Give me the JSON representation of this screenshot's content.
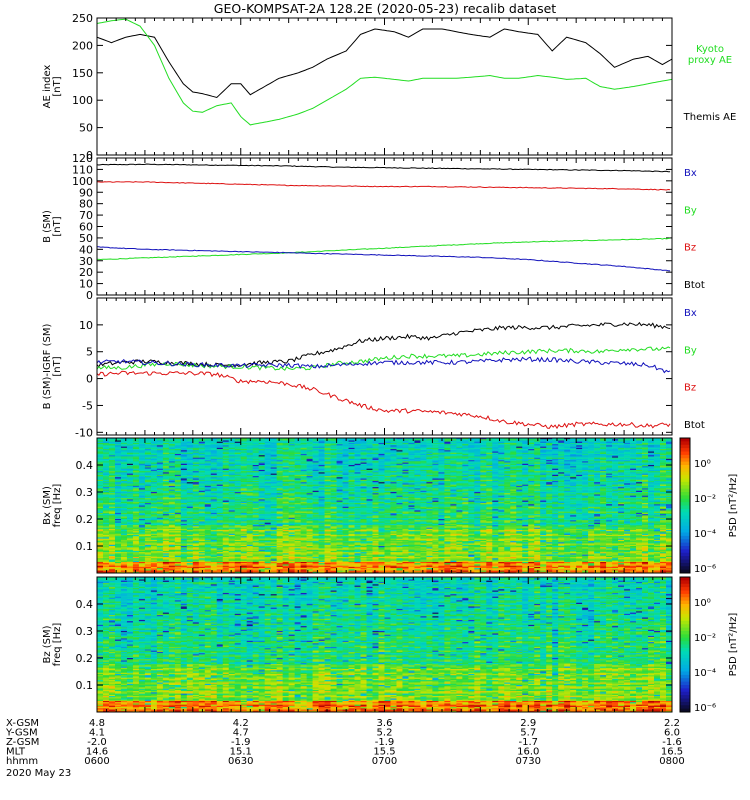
{
  "title": "GEO-KOMPSAT-2A 128.2E (2020-05-23) recalib dataset",
  "colors": {
    "black": "#000000",
    "green": "#22dd22",
    "red": "#dd1111",
    "blue": "#1111bb"
  },
  "chart_data": [
    {
      "id": "ae",
      "type": "line",
      "ylabel": [
        "AE index",
        "[nT]"
      ],
      "ylim": [
        0,
        250
      ],
      "yticks": [
        0,
        50,
        100,
        150,
        200,
        250
      ],
      "x": [
        0,
        3,
        6,
        9,
        12,
        15,
        18,
        20,
        22,
        25,
        28,
        30,
        32,
        35,
        38,
        42,
        45,
        48,
        52,
        55,
        58,
        62,
        65,
        68,
        72,
        75,
        78,
        82,
        85,
        88,
        92,
        95,
        98,
        102,
        105,
        108,
        112,
        115,
        118,
        120
      ],
      "series": [
        {
          "name": "Themis AE",
          "color": "#000000",
          "label_lines": [
            "Themis AE"
          ],
          "values": [
            215,
            205,
            215,
            220,
            215,
            170,
            130,
            115,
            112,
            105,
            130,
            130,
            110,
            125,
            140,
            150,
            160,
            175,
            190,
            220,
            230,
            225,
            215,
            230,
            230,
            225,
            220,
            215,
            230,
            225,
            220,
            190,
            215,
            205,
            185,
            160,
            175,
            180,
            165,
            175
          ]
        },
        {
          "name": "Kyoto proxy AE",
          "color": "#22dd22",
          "label_lines": [
            "Kyoto",
            "proxy AE"
          ],
          "values": [
            240,
            245,
            248,
            235,
            200,
            140,
            95,
            80,
            78,
            90,
            95,
            70,
            55,
            60,
            65,
            75,
            85,
            100,
            120,
            140,
            142,
            138,
            135,
            140,
            140,
            140,
            142,
            145,
            140,
            140,
            145,
            142,
            138,
            140,
            125,
            120,
            125,
            130,
            135,
            138
          ]
        }
      ]
    },
    {
      "id": "bsm",
      "type": "line",
      "ylabel": [
        "B (SM)",
        "[nT]"
      ],
      "ylim": [
        0,
        120
      ],
      "yticks": [
        0,
        10,
        20,
        30,
        40,
        50,
        60,
        70,
        80,
        90,
        100,
        110,
        120
      ],
      "x": [
        0,
        10,
        20,
        30,
        40,
        50,
        60,
        70,
        80,
        90,
        100,
        110,
        120
      ],
      "series": [
        {
          "name": "Bx",
          "color": "#000000",
          "label_color": "#1111bb",
          "values": [
            114,
            114.5,
            114,
            113.5,
            113,
            112,
            111.5,
            111,
            110.5,
            110,
            109.5,
            109,
            108
          ]
        },
        {
          "name": "By",
          "color": "#22dd22",
          "label_color": "#22dd22",
          "values": [
            31,
            32.5,
            34,
            35.5,
            37,
            39,
            41,
            43,
            45,
            46.5,
            47.5,
            48.5,
            49.5
          ]
        },
        {
          "name": "Bz",
          "color": "#dd1111",
          "label_color": "#dd1111",
          "values": [
            99,
            99,
            98,
            97,
            96,
            95.5,
            95,
            95,
            94.5,
            94,
            93.5,
            93,
            92
          ]
        },
        {
          "name": "Btot",
          "color": "#1111bb",
          "label_color": "#000000",
          "values": [
            42,
            40,
            39,
            38,
            37,
            36,
            35,
            34,
            33,
            31,
            28,
            25,
            21
          ]
        }
      ]
    },
    {
      "id": "bigrf",
      "type": "line",
      "ylabel": [
        "B (SM)-IGRF (SM)",
        "[nT]"
      ],
      "ylim": [
        -10.5,
        15
      ],
      "yticks": [
        -10,
        -5,
        0,
        5,
        10
      ],
      "x": [
        0,
        5,
        10,
        15,
        20,
        25,
        30,
        35,
        40,
        45,
        50,
        55,
        60,
        65,
        70,
        75,
        80,
        85,
        90,
        95,
        100,
        105,
        110,
        115,
        120
      ],
      "series": [
        {
          "name": "Bx",
          "color": "#000000",
          "label_color": "#1111bb",
          "values": [
            2.5,
            3,
            3.2,
            3,
            2.8,
            2.5,
            2.6,
            3,
            3.2,
            4.5,
            5.5,
            7,
            7.5,
            7.8,
            7.5,
            8.5,
            9,
            9.5,
            9.5,
            9.5,
            9.8,
            10,
            10.2,
            10,
            9.5
          ]
        },
        {
          "name": "By",
          "color": "#22dd22",
          "label_color": "#22dd22",
          "values": [
            2,
            2,
            2.5,
            2.8,
            2.5,
            2.3,
            2.2,
            2,
            1.8,
            2,
            2.8,
            3.2,
            3.8,
            4.2,
            4.2,
            4.2,
            4.5,
            4.8,
            5,
            5.2,
            5.2,
            5,
            5.5,
            5.5,
            5.5
          ]
        },
        {
          "name": "Bz",
          "color": "#dd1111",
          "label_color": "#dd1111",
          "values": [
            0.8,
            1,
            1,
            1,
            1,
            0.8,
            -0.5,
            -0.5,
            -1,
            -2,
            -3.5,
            -5,
            -6,
            -6,
            -6.2,
            -6.5,
            -7,
            -8,
            -8.5,
            -9,
            -8.5,
            -8.5,
            -8.5,
            -8.8,
            -8.5
          ]
        },
        {
          "name": "Btot",
          "color": "#1111bb",
          "label_color": "#000000",
          "values": [
            3,
            3.2,
            3,
            2.8,
            2.6,
            2.5,
            2.4,
            2.5,
            2.5,
            2.2,
            2.5,
            2.8,
            3,
            3,
            3,
            3,
            3.2,
            3.5,
            3.6,
            3.5,
            3.2,
            3,
            2.8,
            2.5,
            1
          ]
        }
      ]
    },
    {
      "id": "bxspec",
      "type": "heatmap",
      "ylabel": [
        "Bx (SM)",
        "freq [Hz]"
      ],
      "ylim": [
        0,
        0.5
      ],
      "yticks": [
        0.1,
        0.2,
        0.3,
        0.4
      ],
      "zlabel": "PSD [nT²/Hz]",
      "ztick_labels": [
        "10⁰",
        "10⁻²",
        "10⁻⁴",
        "10⁻⁶"
      ]
    },
    {
      "id": "bzspec",
      "type": "heatmap",
      "ylabel": [
        "Bz (SM)",
        "freq [Hz]"
      ],
      "ylim": [
        0,
        0.5
      ],
      "yticks": [
        0.1,
        0.2,
        0.3,
        0.4
      ],
      "zlabel": "PSD [nT²/Hz]",
      "ztick_labels": [
        "10⁰",
        "10⁻²",
        "10⁻⁴",
        "10⁻⁶"
      ]
    }
  ],
  "x_axis": {
    "range": [
      0,
      120
    ],
    "rows": [
      {
        "label": "X-GSM",
        "values": [
          "4.8",
          "4.2",
          "3.6",
          "2.9",
          "2.2"
        ]
      },
      {
        "label": "Y-GSM",
        "values": [
          "4.1",
          "4.7",
          "5.2",
          "5.7",
          "6.0"
        ]
      },
      {
        "label": "Z-GSM",
        "values": [
          "-2.0",
          "-1.9",
          "-1.9",
          "-1.7",
          "-1.6"
        ]
      },
      {
        "label": "MLT",
        "values": [
          "14.6",
          "15.1",
          "15.5",
          "16.0",
          "16.5"
        ]
      },
      {
        "label": "hhmm",
        "values": [
          "0600",
          "0630",
          "0700",
          "0730",
          "0800"
        ]
      }
    ],
    "date": "2020 May 23"
  }
}
